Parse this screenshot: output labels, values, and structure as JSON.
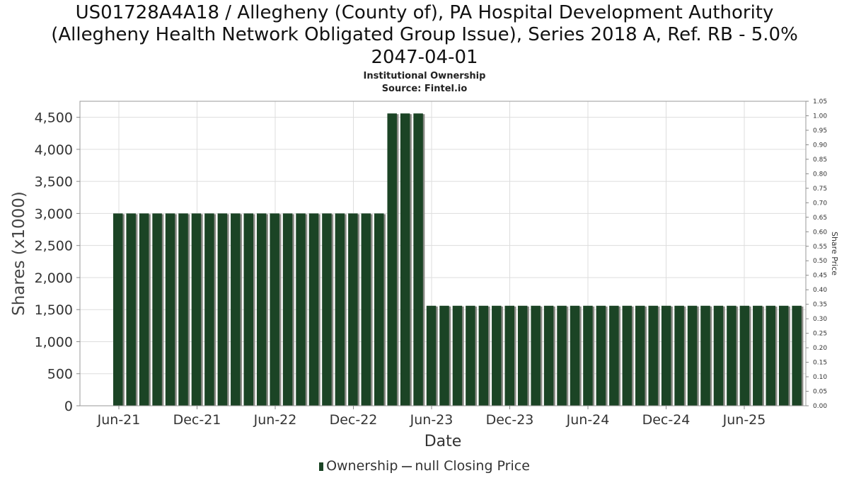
{
  "chart_data": {
    "type": "bar",
    "title_lines": [
      "US01728A4A18 / Allegheny (County of), PA Hospital Development Authority",
      "(Allegheny Health Network Obligated Group Issue), Series 2018 A, Ref. RB - 5.0%",
      "2047-04-01"
    ],
    "subtitle": "Institutional Ownership",
    "source": "Source: Fintel.io",
    "xlabel": "Date",
    "ylabel": "Shares (x1000)",
    "y2label": "Share Price",
    "ylim": [
      0,
      4750
    ],
    "y_ticks": [
      0,
      500,
      1000,
      1500,
      2000,
      2500,
      3000,
      3500,
      4000,
      4500
    ],
    "y_tick_labels": [
      "0",
      "500",
      "1,000",
      "1,500",
      "2,000",
      "2,500",
      "3,000",
      "3,500",
      "4,000",
      "4,500"
    ],
    "y2lim": [
      0,
      1.05
    ],
    "y2_tick_labels": [
      "0.00",
      "0.05",
      "0.10",
      "0.15",
      "0.20",
      "0.25",
      "0.30",
      "0.35",
      "0.40",
      "0.45",
      "0.50",
      "0.55",
      "0.60",
      "0.65",
      "0.70",
      "0.75",
      "0.80",
      "0.85",
      "0.90",
      "0.95",
      "1.00",
      "1.05"
    ],
    "x_tick_labels": [
      "Jun-21",
      "Dec-21",
      "Jun-22",
      "Dec-22",
      "Jun-23",
      "Dec-23",
      "Jun-24",
      "Dec-24",
      "Jun-25"
    ],
    "grid": true,
    "legend_position": "bottom",
    "series": [
      {
        "name": "Ownership",
        "values": [
          3000,
          3000,
          3000,
          3000,
          3000,
          3000,
          3000,
          3000,
          3000,
          3000,
          3000,
          3000,
          3000,
          3000,
          3000,
          3000,
          3000,
          3000,
          3000,
          3000,
          3000,
          4560,
          4560,
          4560,
          1560,
          1560,
          1560,
          1560,
          1560,
          1560,
          1560,
          1560,
          1560,
          1560,
          1560,
          1560,
          1560,
          1560,
          1560,
          1560,
          1560,
          1560,
          1560,
          1560,
          1560,
          1560,
          1560,
          1560,
          1560,
          1560,
          1560,
          1560,
          1560
        ]
      }
    ],
    "legend": {
      "ownership": "Ownership",
      "price": "null Closing Price"
    },
    "colors": {
      "bar": "#1b4425",
      "bar_shadow": "#8a8a85",
      "grid": "#dddddd",
      "axis": "#888888"
    }
  }
}
